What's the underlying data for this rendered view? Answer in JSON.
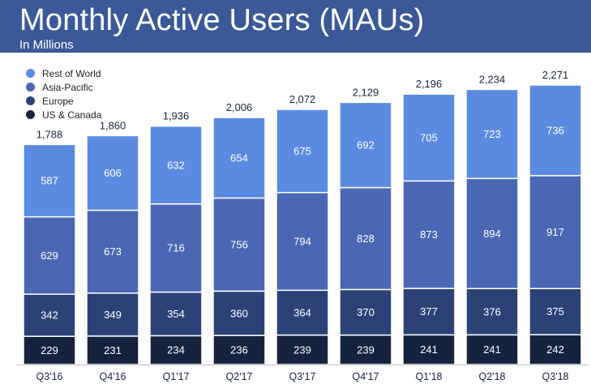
{
  "header": {
    "title": "Monthly Active Users (MAUs)",
    "subtitle": "In Millions"
  },
  "colors": {
    "header_bg": "#3b5998",
    "rest_of_world": "#5b8be0",
    "asia_pacific": "#4a67b3",
    "europe": "#2c4277",
    "us_canada": "#15233f"
  },
  "chart_data": {
    "type": "bar",
    "stacked": true,
    "title": "Monthly Active Users (MAUs)",
    "subtitle": "In Millions",
    "categories": [
      "Q3'16",
      "Q4'16",
      "Q1'17",
      "Q2'17",
      "Q3'17",
      "Q4'17",
      "Q1'18",
      "Q2'18",
      "Q3'18"
    ],
    "series": [
      {
        "name": "US & Canada",
        "color": "#15233f",
        "values": [
          229,
          231,
          234,
          236,
          239,
          239,
          241,
          241,
          242
        ]
      },
      {
        "name": "Europe",
        "color": "#2c4277",
        "values": [
          342,
          349,
          354,
          360,
          364,
          370,
          377,
          376,
          375
        ]
      },
      {
        "name": "Asia-Pacific",
        "color": "#4a67b3",
        "values": [
          629,
          673,
          716,
          756,
          794,
          828,
          873,
          894,
          917
        ]
      },
      {
        "name": "Rest of World",
        "color": "#5b8be0",
        "values": [
          587,
          606,
          632,
          654,
          675,
          692,
          705,
          723,
          736
        ]
      }
    ],
    "totals": [
      "1,788",
      "1,860",
      "1,936",
      "2,006",
      "2,072",
      "2,129",
      "2,196",
      "2,234",
      "2,271"
    ],
    "legend_order": [
      "Rest of World",
      "Asia-Pacific",
      "Europe",
      "US & Canada"
    ],
    "legend_position": "top-left",
    "grid": false,
    "ylim": [
      0,
      2400
    ]
  }
}
